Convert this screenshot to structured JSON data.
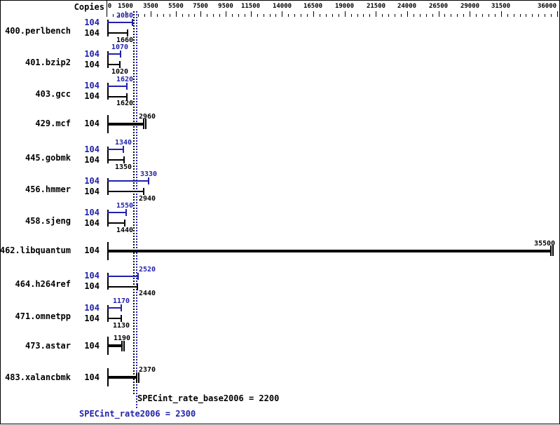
{
  "header": {
    "copies_label": "Copies"
  },
  "axis": {
    "major_ticks": [
      0,
      1500,
      3500,
      5500,
      7500,
      9500,
      11500,
      14000,
      16500,
      19000,
      21500,
      24000,
      26500,
      29000,
      31500,
      36000
    ],
    "minor_tick_step": 500,
    "axis_min": 0,
    "axis_max": 36000
  },
  "benchmarks": [
    {
      "name": "400.perlbench",
      "merged": false,
      "peak_copies": "104",
      "base_copies": "104",
      "peak": "2030",
      "base": "1660"
    },
    {
      "name": "401.bzip2",
      "merged": false,
      "peak_copies": "104",
      "base_copies": "104",
      "peak": "1070",
      "base": "1020"
    },
    {
      "name": "403.gcc",
      "merged": false,
      "peak_copies": "104",
      "base_copies": "104",
      "peak": "1620",
      "base": "1620"
    },
    {
      "name": "429.mcf",
      "merged": true,
      "copies": "104",
      "value": "2960"
    },
    {
      "name": "445.gobmk",
      "merged": false,
      "peak_copies": "104",
      "base_copies": "104",
      "peak": "1340",
      "base": "1350"
    },
    {
      "name": "456.hmmer",
      "merged": false,
      "peak_copies": "104",
      "base_copies": "104",
      "peak": "3330",
      "base": "2940"
    },
    {
      "name": "458.sjeng",
      "merged": false,
      "peak_copies": "104",
      "base_copies": "104",
      "peak": "1550",
      "base": "1440"
    },
    {
      "name": "462.libquantum",
      "merged": true,
      "copies": "104",
      "value": "35500"
    },
    {
      "name": "464.h264ref",
      "merged": false,
      "peak_copies": "104",
      "base_copies": "104",
      "peak": "2520",
      "base": "2440"
    },
    {
      "name": "471.omnetpp",
      "merged": false,
      "peak_copies": "104",
      "base_copies": "104",
      "peak": "1170",
      "base": "1130"
    },
    {
      "name": "473.astar",
      "merged": true,
      "copies": "104",
      "value": "1190"
    },
    {
      "name": "483.xalancbmk",
      "merged": true,
      "copies": "104",
      "value": "2370"
    }
  ],
  "summary": {
    "base_label": "SPECint_rate_base2006",
    "base_value": "2200",
    "base_text": "SPECint_rate_base2006 = 2200",
    "peak_label": "SPECint_rate2006",
    "peak_value": "2300",
    "peak_text": "SPECint_rate2006 = 2300"
  },
  "colors": {
    "peak_blue": "#2121ad",
    "base_black": "#000000",
    "background": "#ffffff"
  },
  "chart_data": {
    "type": "bar",
    "orientation": "horizontal",
    "title": "",
    "xlabel": "",
    "ylabel": "Copies",
    "xlim": [
      0,
      36000
    ],
    "x_ticks": [
      0,
      1500,
      3500,
      5500,
      7500,
      9500,
      11500,
      14000,
      16500,
      19000,
      21500,
      24000,
      26500,
      29000,
      31500,
      36000
    ],
    "grid": false,
    "categories": [
      "400.perlbench",
      "401.bzip2",
      "403.gcc",
      "429.mcf",
      "445.gobmk",
      "456.hmmer",
      "458.sjeng",
      "462.libquantum",
      "464.h264ref",
      "471.omnetpp",
      "473.astar",
      "483.xalancbmk"
    ],
    "copies": [
      104,
      104,
      104,
      104,
      104,
      104,
      104,
      104,
      104,
      104,
      104,
      104
    ],
    "series": [
      {
        "name": "SPECint_rate2006 (peak)",
        "color": "#2121ad",
        "values": [
          2030,
          1070,
          1620,
          2960,
          1340,
          3330,
          1550,
          35500,
          2520,
          1170,
          1190,
          2370
        ]
      },
      {
        "name": "SPECint_rate_base2006 (base)",
        "color": "#000000",
        "values": [
          1660,
          1020,
          1620,
          2960,
          1350,
          2940,
          1440,
          35500,
          2440,
          1130,
          1190,
          2370
        ]
      }
    ],
    "reference_lines": [
      {
        "label": "SPECint_rate_base2006",
        "value": 2200,
        "color": "#000000",
        "style": "dotted"
      },
      {
        "label": "SPECint_rate2006",
        "value": 2300,
        "color": "#2121ad",
        "style": "dotted"
      }
    ]
  }
}
